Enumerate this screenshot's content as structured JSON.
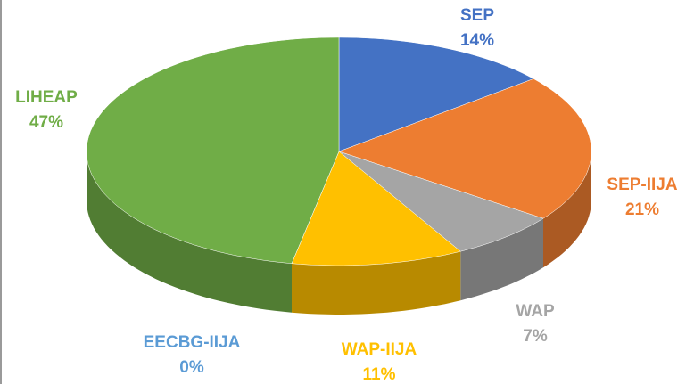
{
  "chart_data": {
    "type": "pie",
    "categories": [
      "SEP",
      "SEP-IIJA",
      "WAP",
      "WAP-IIJA",
      "EECBG-IIJA",
      "LIHEAP"
    ],
    "values": [
      14,
      21,
      7,
      11,
      0,
      47
    ],
    "value_labels": [
      "14%",
      "21%",
      "7%",
      "11%",
      "0%",
      "47%"
    ],
    "colors": [
      "#4472c4",
      "#ed7d31",
      "#a5a5a5",
      "#ffc000",
      "#5b9bd5",
      "#70ad47"
    ],
    "three_d": true
  }
}
